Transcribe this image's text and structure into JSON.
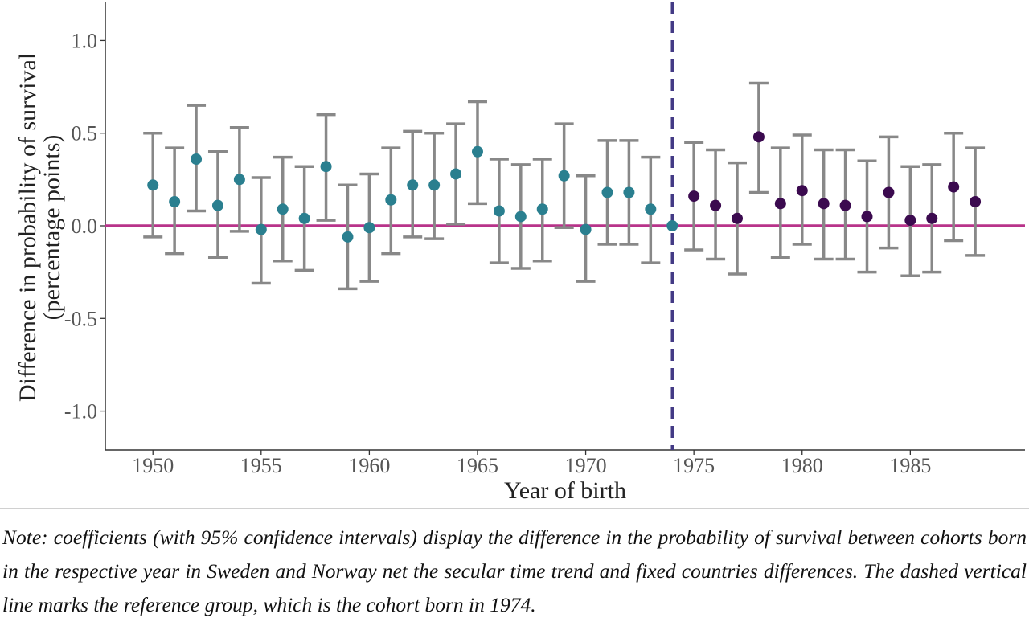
{
  "chart_data": {
    "type": "scatter",
    "title": "",
    "xlabel": "Year of birth",
    "ylabel_lines": [
      "Difference in probability of survival",
      "(percentage points)"
    ],
    "xlim": [
      1947.8,
      1990.3
    ],
    "ylim": [
      -1.21,
      1.21
    ],
    "x_ticks": [
      1950,
      1955,
      1960,
      1965,
      1970,
      1975,
      1980,
      1985
    ],
    "x_tick_labels": [
      "1950",
      "1955",
      "1960",
      "1965",
      "1970",
      "1975",
      "1980",
      "1985"
    ],
    "y_ticks": [
      1.0,
      0.5,
      0.0,
      -0.5,
      -1.0
    ],
    "y_tick_labels": [
      "1.0",
      "0.5",
      "0.0",
      "-0.5",
      "-1.0"
    ],
    "grid": false,
    "legend": "none",
    "reference_line_y": 0,
    "reference_line_x": 1974,
    "colors": {
      "before": "#2a7f8f",
      "after": "#3b0a4f",
      "errorbar": "#888888",
      "zero_line": "#b8338a",
      "ref_line": "#433a85",
      "axis": "#333333"
    },
    "series": [
      {
        "x": [
          1950,
          1951,
          1952,
          1953,
          1954,
          1955,
          1956,
          1957,
          1958,
          1959,
          1960,
          1961,
          1962,
          1963,
          1964,
          1965,
          1966,
          1967,
          1968,
          1969,
          1970,
          1971,
          1972,
          1973,
          1974
        ],
        "y": [
          0.22,
          0.13,
          0.36,
          0.11,
          0.25,
          -0.02,
          0.09,
          0.04,
          0.32,
          -0.06,
          -0.01,
          0.14,
          0.22,
          0.22,
          0.28,
          0.4,
          0.08,
          0.05,
          0.09,
          0.27,
          -0.02,
          0.18,
          0.18,
          0.09,
          0.0
        ],
        "ci_low": [
          -0.06,
          -0.15,
          0.08,
          -0.17,
          -0.03,
          -0.31,
          -0.19,
          -0.24,
          0.03,
          -0.34,
          -0.3,
          -0.15,
          -0.06,
          -0.07,
          0.01,
          0.12,
          -0.2,
          -0.23,
          -0.19,
          -0.01,
          -0.3,
          -0.1,
          -0.1,
          -0.2,
          0.0
        ],
        "ci_high": [
          0.5,
          0.42,
          0.65,
          0.4,
          0.53,
          0.26,
          0.37,
          0.32,
          0.6,
          0.22,
          0.28,
          0.42,
          0.51,
          0.5,
          0.55,
          0.67,
          0.36,
          0.33,
          0.36,
          0.55,
          0.27,
          0.46,
          0.46,
          0.37,
          0.0
        ]
      },
      {
        "x": [
          1975,
          1976,
          1977,
          1978,
          1979,
          1980,
          1981,
          1982,
          1983,
          1984,
          1985,
          1986,
          1987,
          1988
        ],
        "y": [
          0.16,
          0.11,
          0.04,
          0.48,
          0.12,
          0.19,
          0.12,
          0.11,
          0.05,
          0.18,
          0.03,
          0.04,
          0.21,
          0.13
        ],
        "ci_low": [
          -0.13,
          -0.18,
          -0.26,
          0.18,
          -0.17,
          -0.1,
          -0.18,
          -0.18,
          -0.25,
          -0.12,
          -0.27,
          -0.25,
          -0.08,
          -0.16
        ],
        "ci_high": [
          0.45,
          0.41,
          0.34,
          0.77,
          0.42,
          0.49,
          0.41,
          0.41,
          0.35,
          0.48,
          0.32,
          0.33,
          0.5,
          0.42
        ]
      }
    ]
  },
  "note": "Note: coefficients (with 95% confidence intervals) display the difference in the probability of survival between cohorts born in the respective year in Sweden and Norway net the secular time trend and fixed countries differences. The dashed vertical line marks the reference group, which is the cohort born in 1974."
}
